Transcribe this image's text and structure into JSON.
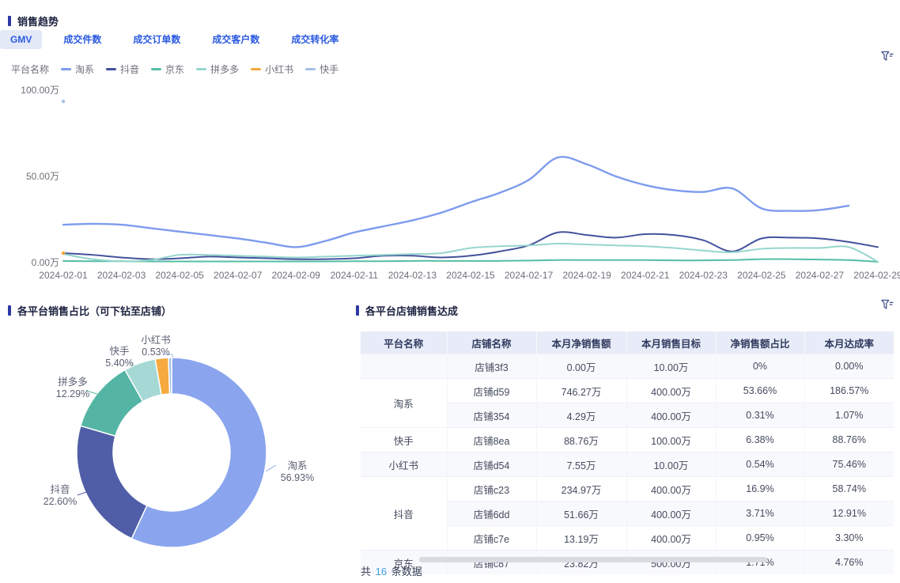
{
  "colors": {
    "accent_blue": "#2b5ae0",
    "title_bar": "#2c38a6",
    "table_header_bg": "#e8ecf8",
    "footer_count": "#3e9fdf"
  },
  "icons": {
    "filter": "funnel-filter-icon"
  },
  "sales_trend": {
    "section_title": "销售趋势",
    "tabs": [
      {
        "key": "gmv",
        "label": "GMV",
        "active": true
      },
      {
        "key": "deal-items",
        "label": "成交件数",
        "active": false
      },
      {
        "key": "deal-orders",
        "label": "成交订单数",
        "active": false
      },
      {
        "key": "deal-customers",
        "label": "成交客户数",
        "active": false
      },
      {
        "key": "deal-conversion",
        "label": "成交转化率",
        "active": false
      }
    ],
    "legend_title": "平台名称",
    "chart_data": {
      "type": "line",
      "unit": "万",
      "ylim": [
        0,
        100
      ],
      "yticks": [
        {
          "value": 0,
          "label": "0.00万"
        },
        {
          "value": 50,
          "label": "50.00万"
        },
        {
          "value": 100,
          "label": "100.00万"
        }
      ],
      "x": [
        "2024-02-01",
        "2024-02-02",
        "2024-02-03",
        "2024-02-04",
        "2024-02-05",
        "2024-02-06",
        "2024-02-07",
        "2024-02-08",
        "2024-02-09",
        "2024-02-10",
        "2024-02-11",
        "2024-02-12",
        "2024-02-13",
        "2024-02-14",
        "2024-02-15",
        "2024-02-16",
        "2024-02-17",
        "2024-02-18",
        "2024-02-19",
        "2024-02-20",
        "2024-02-21",
        "2024-02-22",
        "2024-02-23",
        "2024-02-24",
        "2024-02-25",
        "2024-02-26",
        "2024-02-27",
        "2024-02-28",
        "2024-02-29"
      ],
      "xtick_every": 2,
      "series": [
        {
          "key": "taoxi",
          "name": "淘系",
          "color": "#7e9bee",
          "values": [
            22,
            22.5,
            22,
            20,
            18,
            16,
            14,
            11.5,
            9,
            12.5,
            17.5,
            21,
            24.5,
            29,
            35,
            40.5,
            48,
            61,
            57,
            50,
            45,
            42,
            41,
            43,
            31.5,
            30,
            30.5,
            33,
            null
          ]
        },
        {
          "key": "douyin",
          "name": "抖音",
          "color": "#44529d",
          "values": [
            5.5,
            4.5,
            3,
            2,
            2.5,
            3.5,
            3,
            2.5,
            2,
            2,
            2.5,
            4,
            4,
            3,
            4,
            6.5,
            10,
            17.5,
            16,
            14.5,
            16.5,
            16,
            13,
            6.5,
            14,
            14.5,
            14,
            12,
            9
          ]
        },
        {
          "key": "jingdong",
          "name": "京东",
          "color": "#55bda4",
          "values": [
            1,
            0.8,
            0.8,
            0.7,
            0.7,
            0.7,
            0.7,
            0.7,
            0.7,
            0.7,
            0.8,
            0.8,
            1,
            1,
            1,
            1,
            1.2,
            1.5,
            1.5,
            1.5,
            1.5,
            1.3,
            1.3,
            1.5,
            2,
            2,
            1.8,
            1.5,
            0.5
          ]
        },
        {
          "key": "pinduoduo",
          "name": "拼多多",
          "color": "#95d6cd",
          "values": [
            5,
            2,
            0.8,
            1.5,
            4.5,
            4.5,
            4,
            3.5,
            3,
            3.5,
            4,
            4.5,
            5,
            5.5,
            8.5,
            9.5,
            10,
            11,
            10.5,
            10,
            9.5,
            8.5,
            7,
            6,
            8,
            8.5,
            8.5,
            9,
            0.5
          ]
        },
        {
          "key": "xiaohongshu",
          "name": "小红书",
          "color": "#f2a93b",
          "values": [
            5.5,
            null,
            null,
            null,
            null,
            null,
            null,
            null,
            null,
            null,
            null,
            null,
            null,
            null,
            null,
            null,
            null,
            null,
            null,
            null,
            null,
            null,
            null,
            null,
            null,
            null,
            null,
            null,
            null
          ]
        },
        {
          "key": "kuaishou",
          "name": "快手",
          "color": "#a5c0e8",
          "values": [
            93.5,
            null,
            null,
            null,
            null,
            null,
            null,
            null,
            null,
            null,
            null,
            null,
            null,
            null,
            null,
            null,
            null,
            null,
            null,
            null,
            null,
            null,
            null,
            null,
            null,
            null,
            null,
            null,
            null
          ]
        }
      ]
    }
  },
  "platform_share": {
    "section_title": "各平台销售占比（可下钻至店铺）",
    "chart_data": {
      "type": "pie",
      "slices": [
        {
          "key": "taoxi",
          "name": "淘系",
          "pct": 56.93,
          "label": "56.93%",
          "color": "#8aa5ee",
          "label_visible": true
        },
        {
          "key": "douyin",
          "name": "抖音",
          "pct": 22.6,
          "label": "22.60%",
          "color": "#4f5ea6",
          "label_visible": true
        },
        {
          "key": "pinduoduo",
          "name": "拼多多",
          "pct": 12.29,
          "label": "12.29%",
          "color": "#54b5a4",
          "label_visible": true
        },
        {
          "key": "kuaishou",
          "name": "快手",
          "pct": 5.4,
          "label": "5.40%",
          "color": "#a6d9d5",
          "label_visible": true
        },
        {
          "key": "jingdong",
          "name": "京东",
          "pct": 2.25,
          "label": "",
          "color": "#f5a93e",
          "label_visible": false
        },
        {
          "key": "xiaohongshu",
          "name": "小红书",
          "pct": 0.53,
          "label": "0.53%",
          "color": "#a5c0e8",
          "label_visible": true
        }
      ]
    }
  },
  "store_achievement": {
    "section_title": "各平台店铺销售达成",
    "table": {
      "headers": [
        "平台名称",
        "店铺名称",
        "本月净销售额",
        "本月销售目标",
        "净销售额占比",
        "本月达成率"
      ],
      "groups": [
        {
          "platform": "",
          "rows": [
            [
              "店铺3f3",
              "0.00万",
              "10.00万",
              "0%",
              "0.00%"
            ]
          ]
        },
        {
          "platform": "淘系",
          "rows": [
            [
              "店铺d59",
              "746.27万",
              "400.00万",
              "53.66%",
              "186.57%"
            ],
            [
              "店铺354",
              "4.29万",
              "400.00万",
              "0.31%",
              "1.07%"
            ]
          ]
        },
        {
          "platform": "快手",
          "rows": [
            [
              "店铺8ea",
              "88.76万",
              "100.00万",
              "6.38%",
              "88.76%"
            ]
          ]
        },
        {
          "platform": "小红书",
          "rows": [
            [
              "店铺d54",
              "7.55万",
              "10.00万",
              "0.54%",
              "75.46%"
            ]
          ]
        },
        {
          "platform": "抖音",
          "rows": [
            [
              "店铺c23",
              "234.97万",
              "400.00万",
              "16.9%",
              "58.74%"
            ],
            [
              "店铺6dd",
              "51.66万",
              "400.00万",
              "3.71%",
              "12.91%"
            ],
            [
              "店铺c7e",
              "13.19万",
              "400.00万",
              "0.95%",
              "3.30%"
            ]
          ]
        },
        {
          "platform": "京东",
          "rows": [
            [
              "店铺c87",
              "23.82万",
              "500.00万",
              "1.71%",
              "4.76%"
            ]
          ]
        }
      ]
    },
    "footer": {
      "prefix": "共",
      "count": "16",
      "suffix": "条数据"
    }
  }
}
